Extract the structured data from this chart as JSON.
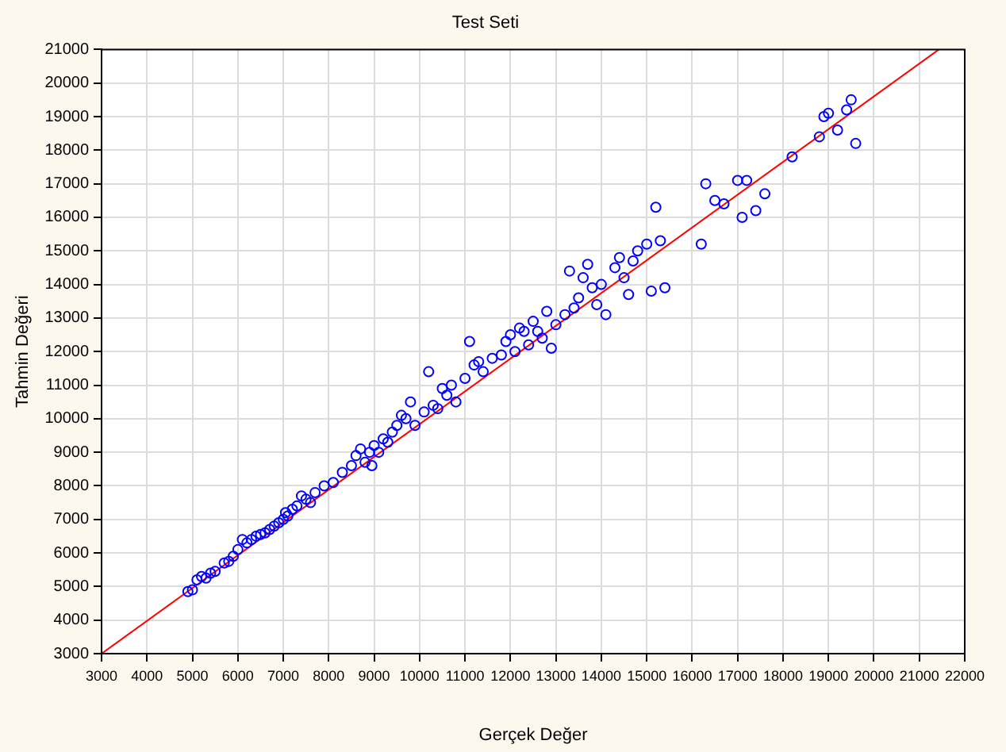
{
  "chart_data": {
    "type": "scatter",
    "title": "Test Seti",
    "xlabel": "Gerçek Değer",
    "ylabel": "Tahmin Değeri",
    "xlim": [
      3000,
      22000
    ],
    "xticks": [
      3000,
      4000,
      5000,
      6000,
      7000,
      8000,
      9000,
      10000,
      11000,
      12000,
      13000,
      14000,
      15000,
      16000,
      17000,
      18000,
      19000,
      20000,
      21000,
      22000
    ],
    "ylim": [
      3000,
      21000
    ],
    "yticks": [
      3000,
      4000,
      5000,
      6000,
      7000,
      8000,
      9000,
      10000,
      11000,
      12000,
      13000,
      14000,
      15000,
      16000,
      17000,
      18000,
      19000,
      20000,
      21000
    ],
    "grid": true,
    "legend": false,
    "series": [
      {
        "type": "scatter",
        "color": "#0000ff",
        "marker": "circle",
        "x": [
          4900,
          5000,
          5100,
          5200,
          5300,
          5400,
          5500,
          5700,
          5800,
          5900,
          6000,
          6100,
          6200,
          6300,
          6400,
          6500,
          6600,
          6700,
          6800,
          6900,
          7000,
          7050,
          7100,
          7200,
          7300,
          7400,
          7500,
          7600,
          7700,
          7900,
          8100,
          8300,
          8500,
          8600,
          8700,
          8800,
          8900,
          8950,
          9000,
          9100,
          9200,
          9300,
          9400,
          9500,
          9600,
          9700,
          9800,
          9900,
          10100,
          10200,
          10300,
          10400,
          10500,
          10600,
          10700,
          10800,
          11000,
          11100,
          11200,
          11300,
          11400,
          11600,
          11800,
          11900,
          12000,
          12100,
          12200,
          12300,
          12400,
          12500,
          12600,
          12700,
          12800,
          12900,
          13000,
          13200,
          13300,
          13400,
          13500,
          13600,
          13700,
          13800,
          13900,
          14000,
          14100,
          14300,
          14400,
          14500,
          14600,
          14700,
          14800,
          15000,
          15100,
          15200,
          15300,
          15400,
          16200,
          16300,
          16500,
          16700,
          17000,
          17100,
          17200,
          17400,
          17600,
          18200,
          18800,
          18900,
          19000,
          19200,
          19400,
          19500,
          19600
        ],
        "values": [
          4850,
          4900,
          5200,
          5300,
          5250,
          5400,
          5450,
          5700,
          5750,
          5900,
          6100,
          6400,
          6300,
          6400,
          6500,
          6550,
          6600,
          6700,
          6800,
          6900,
          7000,
          7200,
          7100,
          7300,
          7400,
          7700,
          7600,
          7500,
          7800,
          8000,
          8100,
          8400,
          8600,
          8900,
          9100,
          8700,
          9000,
          8600,
          9200,
          9000,
          9400,
          9300,
          9600,
          9800,
          10100,
          10000,
          10500,
          9800,
          10200,
          11400,
          10400,
          10300,
          10900,
          10700,
          11000,
          10500,
          11200,
          12300,
          11600,
          11700,
          11400,
          11800,
          11900,
          12300,
          12500,
          12000,
          12700,
          12600,
          12200,
          12900,
          12600,
          12400,
          13200,
          12100,
          12800,
          13100,
          14400,
          13300,
          13600,
          14200,
          14600,
          13900,
          13400,
          14000,
          13100,
          14500,
          14800,
          14200,
          13700,
          14700,
          15000,
          15200,
          13800,
          16300,
          15300,
          13900,
          15200,
          17000,
          16500,
          16400,
          17100,
          16000,
          17100,
          16200,
          16700,
          17800,
          18400,
          19000,
          19100,
          18600,
          19200,
          19500,
          18200
        ]
      },
      {
        "type": "line",
        "color": "#ff0000",
        "marker": "none",
        "x": [
          3000,
          21430
        ],
        "values": [
          3000,
          21000
        ]
      }
    ]
  }
}
